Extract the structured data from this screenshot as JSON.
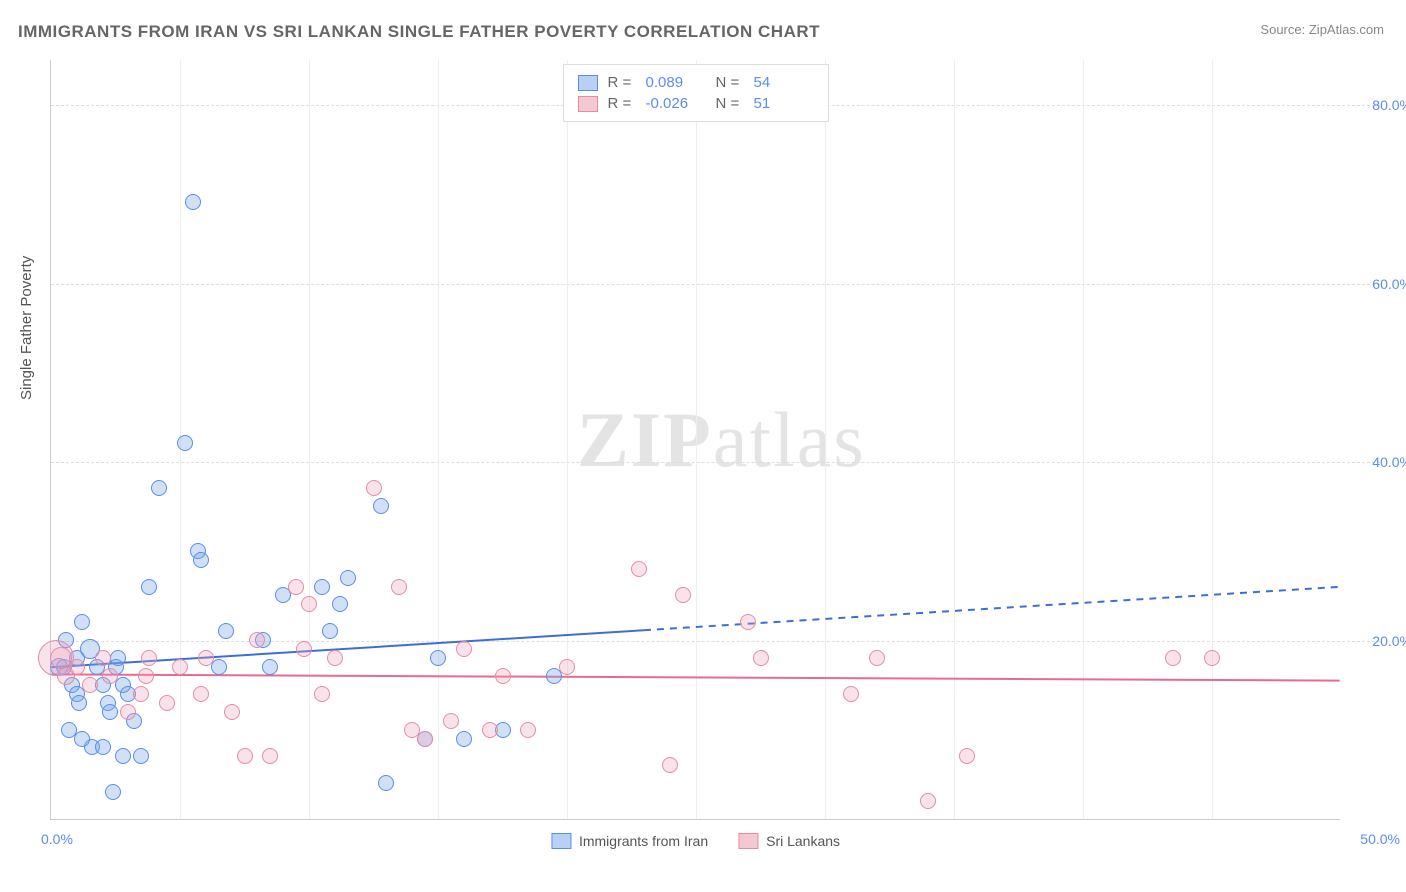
{
  "title": "IMMIGRANTS FROM IRAN VS SRI LANKAN SINGLE FATHER POVERTY CORRELATION CHART",
  "source_label": "Source:",
  "source_name": "ZipAtlas.com",
  "y_axis_label": "Single Father Poverty",
  "watermark_bold": "ZIP",
  "watermark_rest": "atlas",
  "chart": {
    "type": "scatter",
    "background_color": "#ffffff",
    "grid_color": "#dddddd",
    "axis_color": "#cccccc",
    "x_range": [
      0,
      50
    ],
    "y_range": [
      0,
      85
    ],
    "y_ticks": [
      20,
      40,
      60,
      80
    ],
    "y_tick_labels": [
      "20.0%",
      "40.0%",
      "60.0%",
      "80.0%"
    ],
    "x_origin_label": "0.0%",
    "x_max_label": "50.0%",
    "x_minor_ticks": [
      5,
      10,
      15,
      20,
      25,
      30,
      35,
      40,
      45
    ],
    "marker_radius": 8,
    "series": [
      {
        "name": "Immigrants from Iran",
        "color_fill": "rgba(120,165,230,0.35)",
        "color_stroke": "#5b8def",
        "R": "0.089",
        "N": "54",
        "trend": {
          "y_at_x0": 17.0,
          "y_at_xmax": 26.0,
          "solid_until_x": 23.0,
          "stroke": "#3b6fd6",
          "width": 2
        },
        "points": [
          {
            "x": 0.3,
            "y": 17,
            "r": 9
          },
          {
            "x": 0.5,
            "y": 17,
            "r": 8
          },
          {
            "x": 0.8,
            "y": 15,
            "r": 8
          },
          {
            "x": 0.6,
            "y": 20,
            "r": 8
          },
          {
            "x": 1.0,
            "y": 14,
            "r": 8
          },
          {
            "x": 1.1,
            "y": 13,
            "r": 8
          },
          {
            "x": 1.0,
            "y": 18,
            "r": 8
          },
          {
            "x": 1.2,
            "y": 22,
            "r": 8
          },
          {
            "x": 1.5,
            "y": 19,
            "r": 10
          },
          {
            "x": 1.8,
            "y": 17,
            "r": 8
          },
          {
            "x": 1.6,
            "y": 8,
            "r": 8
          },
          {
            "x": 1.2,
            "y": 9,
            "r": 8
          },
          {
            "x": 0.7,
            "y": 10,
            "r": 8
          },
          {
            "x": 2.0,
            "y": 15,
            "r": 8
          },
          {
            "x": 2.0,
            "y": 8,
            "r": 8
          },
          {
            "x": 2.2,
            "y": 13,
            "r": 8
          },
          {
            "x": 2.5,
            "y": 17,
            "r": 8
          },
          {
            "x": 2.3,
            "y": 12,
            "r": 8
          },
          {
            "x": 2.4,
            "y": 3,
            "r": 8
          },
          {
            "x": 2.8,
            "y": 15,
            "r": 8
          },
          {
            "x": 2.8,
            "y": 7,
            "r": 8
          },
          {
            "x": 3.0,
            "y": 14,
            "r": 8
          },
          {
            "x": 2.6,
            "y": 18,
            "r": 8
          },
          {
            "x": 3.2,
            "y": 11,
            "r": 8
          },
          {
            "x": 3.5,
            "y": 7,
            "r": 8
          },
          {
            "x": 3.8,
            "y": 26,
            "r": 8
          },
          {
            "x": 4.2,
            "y": 37,
            "r": 8
          },
          {
            "x": 5.2,
            "y": 42,
            "r": 8
          },
          {
            "x": 5.5,
            "y": 69,
            "r": 8
          },
          {
            "x": 5.7,
            "y": 30,
            "r": 8
          },
          {
            "x": 5.8,
            "y": 29,
            "r": 8
          },
          {
            "x": 6.5,
            "y": 17,
            "r": 8
          },
          {
            "x": 6.8,
            "y": 21,
            "r": 8
          },
          {
            "x": 8.2,
            "y": 20,
            "r": 8
          },
          {
            "x": 8.5,
            "y": 17,
            "r": 8
          },
          {
            "x": 9.0,
            "y": 25,
            "r": 8
          },
          {
            "x": 10.5,
            "y": 26,
            "r": 8
          },
          {
            "x": 10.8,
            "y": 21,
            "r": 8
          },
          {
            "x": 11.2,
            "y": 24,
            "r": 8
          },
          {
            "x": 11.5,
            "y": 27,
            "r": 8
          },
          {
            "x": 12.8,
            "y": 35,
            "r": 8
          },
          {
            "x": 13.0,
            "y": 4,
            "r": 8
          },
          {
            "x": 14.5,
            "y": 9,
            "r": 8
          },
          {
            "x": 15.0,
            "y": 18,
            "r": 8
          },
          {
            "x": 16.0,
            "y": 9,
            "r": 8
          },
          {
            "x": 17.5,
            "y": 10,
            "r": 8
          },
          {
            "x": 19.5,
            "y": 16,
            "r": 8
          }
        ]
      },
      {
        "name": "Sri Lankans",
        "color_fill": "rgba(240,160,185,0.3)",
        "color_stroke": "#e58ca5",
        "R": "-0.026",
        "N": "51",
        "trend": {
          "y_at_x0": 16.2,
          "y_at_xmax": 15.5,
          "solid_until_x": 50.0,
          "stroke": "#e86b8f",
          "width": 2
        },
        "points": [
          {
            "x": 0.2,
            "y": 18,
            "r": 18
          },
          {
            "x": 0.4,
            "y": 18,
            "r": 11
          },
          {
            "x": 0.6,
            "y": 16,
            "r": 9
          },
          {
            "x": 1.0,
            "y": 17,
            "r": 8
          },
          {
            "x": 1.5,
            "y": 15,
            "r": 8
          },
          {
            "x": 2.0,
            "y": 18,
            "r": 8
          },
          {
            "x": 2.3,
            "y": 16,
            "r": 8
          },
          {
            "x": 3.0,
            "y": 12,
            "r": 8
          },
          {
            "x": 3.5,
            "y": 14,
            "r": 8
          },
          {
            "x": 3.7,
            "y": 16,
            "r": 8
          },
          {
            "x": 3.8,
            "y": 18,
            "r": 8
          },
          {
            "x": 4.5,
            "y": 13,
            "r": 8
          },
          {
            "x": 5.0,
            "y": 17,
            "r": 8
          },
          {
            "x": 5.8,
            "y": 14,
            "r": 8
          },
          {
            "x": 6.0,
            "y": 18,
            "r": 8
          },
          {
            "x": 7.0,
            "y": 12,
            "r": 8
          },
          {
            "x": 7.5,
            "y": 7,
            "r": 8
          },
          {
            "x": 8.0,
            "y": 20,
            "r": 8
          },
          {
            "x": 8.5,
            "y": 7,
            "r": 8
          },
          {
            "x": 9.5,
            "y": 26,
            "r": 8
          },
          {
            "x": 9.8,
            "y": 19,
            "r": 8
          },
          {
            "x": 10.0,
            "y": 24,
            "r": 8
          },
          {
            "x": 10.5,
            "y": 14,
            "r": 8
          },
          {
            "x": 11.0,
            "y": 18,
            "r": 8
          },
          {
            "x": 12.5,
            "y": 37,
            "r": 8
          },
          {
            "x": 13.5,
            "y": 26,
            "r": 8
          },
          {
            "x": 14.0,
            "y": 10,
            "r": 8
          },
          {
            "x": 14.5,
            "y": 9,
            "r": 8
          },
          {
            "x": 15.5,
            "y": 11,
            "r": 8
          },
          {
            "x": 16.0,
            "y": 19,
            "r": 8
          },
          {
            "x": 17.0,
            "y": 10,
            "r": 8
          },
          {
            "x": 17.5,
            "y": 16,
            "r": 8
          },
          {
            "x": 18.5,
            "y": 10,
            "r": 8
          },
          {
            "x": 20.0,
            "y": 17,
            "r": 8
          },
          {
            "x": 22.8,
            "y": 28,
            "r": 8
          },
          {
            "x": 24.0,
            "y": 6,
            "r": 8
          },
          {
            "x": 24.5,
            "y": 25,
            "r": 8
          },
          {
            "x": 27.0,
            "y": 22,
            "r": 8
          },
          {
            "x": 27.5,
            "y": 18,
            "r": 8
          },
          {
            "x": 31.0,
            "y": 14,
            "r": 8
          },
          {
            "x": 32.0,
            "y": 18,
            "r": 8
          },
          {
            "x": 34.0,
            "y": 2,
            "r": 8
          },
          {
            "x": 35.5,
            "y": 7,
            "r": 8
          },
          {
            "x": 43.5,
            "y": 18,
            "r": 8
          },
          {
            "x": 45.0,
            "y": 18,
            "r": 8
          }
        ]
      }
    ]
  }
}
